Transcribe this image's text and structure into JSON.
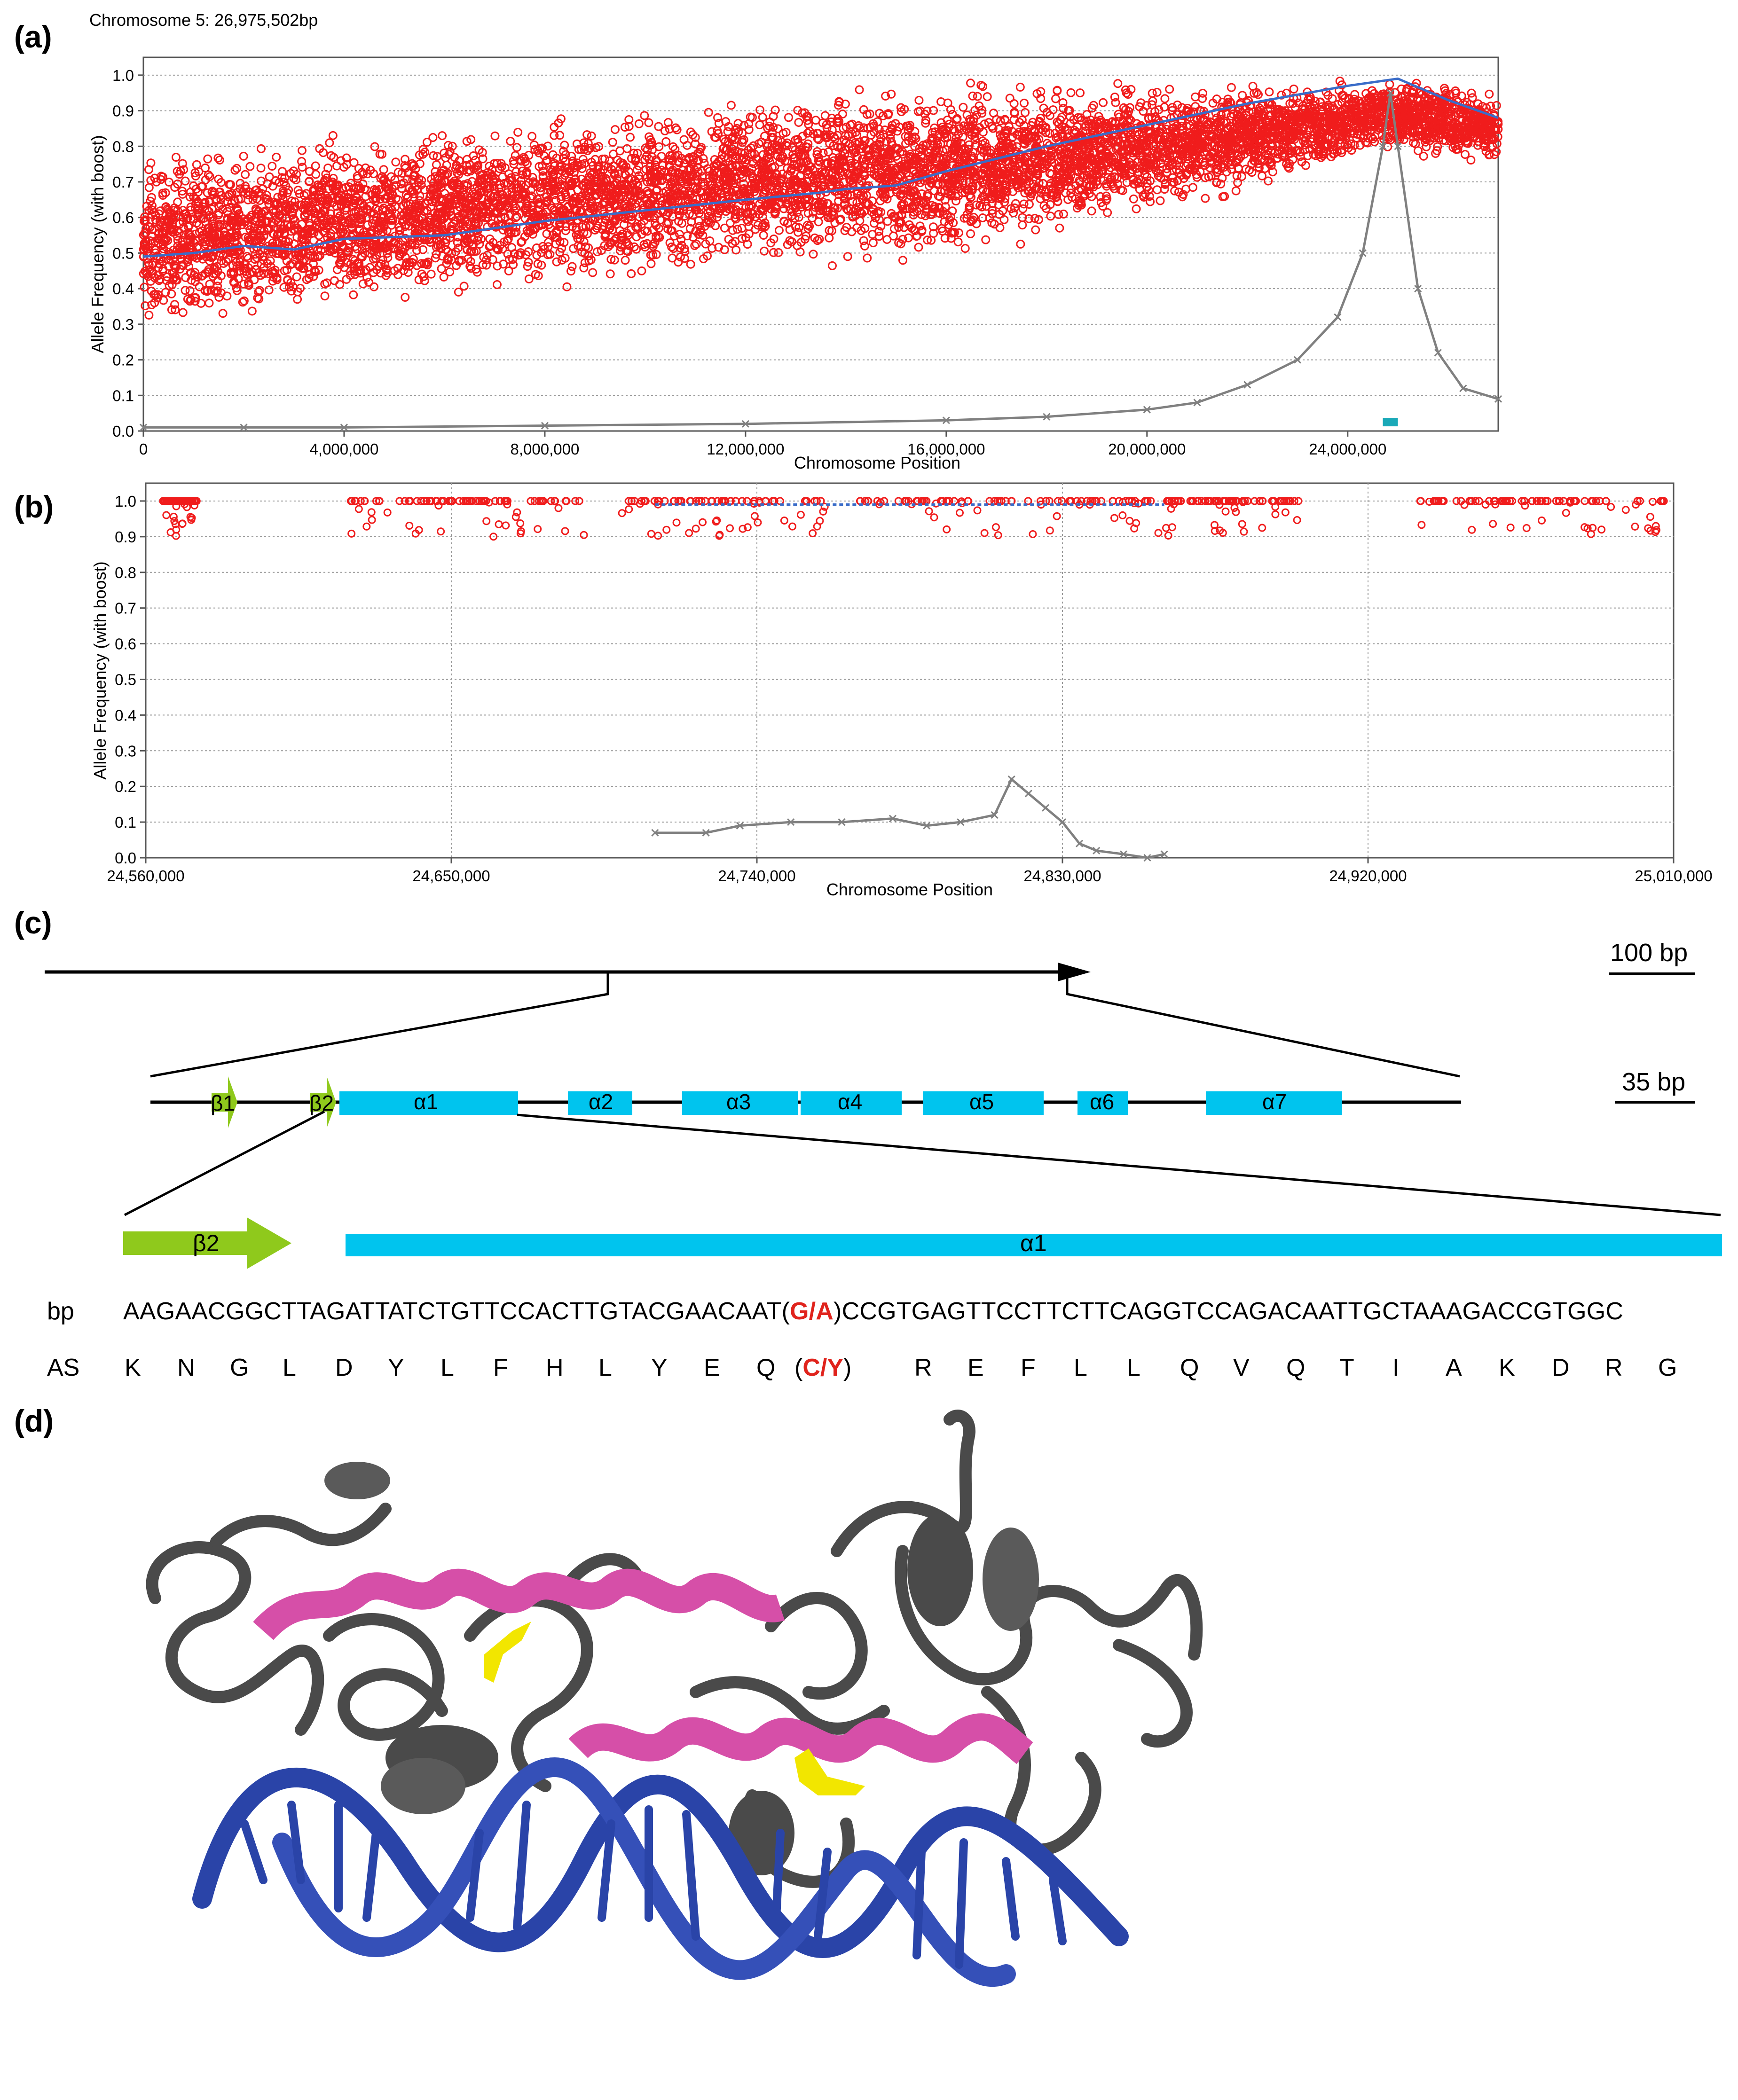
{
  "panels": {
    "a": "(a)",
    "b": "(b)",
    "c": "(c)",
    "d": "(d)"
  },
  "chart_data": [
    {
      "type": "scatter",
      "title": "Chromosome 5: 26,975,502bp",
      "xlabel": "Chromosome Position",
      "ylabel": "Allele Frequency (with boost)",
      "xlim": [
        0,
        27000000
      ],
      "ylim": [
        0,
        1.05
      ],
      "x_ticks": [
        0,
        4000000,
        8000000,
        12000000,
        16000000,
        20000000,
        24000000
      ],
      "x_tick_labels": [
        "0",
        "4,000,000",
        "8,000,000",
        "12,000,000",
        "16,000,000",
        "20,000,000",
        "24,000,000"
      ],
      "y_ticks": [
        0.0,
        0.1,
        0.2,
        0.3,
        0.4,
        0.5,
        0.6,
        0.7,
        0.8,
        0.9,
        1.0
      ],
      "y_tick_labels": [
        "0.0",
        "0.1",
        "0.2",
        "0.3",
        "0.4",
        "0.5",
        "0.6",
        "0.7",
        "0.8",
        "0.9",
        "1.0"
      ],
      "grid": true,
      "series": [
        {
          "color": "#f01c1c",
          "style": "points",
          "band_x": [
            0,
            2000000,
            4000000,
            6000000,
            7500000,
            8000000,
            10000000,
            12000000,
            13500000,
            15000000,
            17000000,
            19000000,
            21000000,
            23000000,
            24800000,
            26000000,
            27000000
          ],
          "band_low": [
            0.25,
            0.3,
            0.32,
            0.35,
            0.35,
            0.38,
            0.4,
            0.45,
            0.45,
            0.45,
            0.5,
            0.55,
            0.62,
            0.7,
            0.78,
            0.75,
            0.75
          ],
          "band_high": [
            0.8,
            0.82,
            0.85,
            0.88,
            0.9,
            0.9,
            0.92,
            0.95,
            0.98,
            1.0,
            1.0,
            1.0,
            1.0,
            1.0,
            1.0,
            1.0,
            0.95
          ]
        },
        {
          "color": "#3a6cc8",
          "style": "line",
          "x": [
            0,
            1000000,
            2000000,
            3000000,
            4000000,
            6000000,
            8000000,
            10000000,
            12000000,
            13500000,
            14000000,
            15000000,
            16000000,
            18000000,
            20000000,
            22000000,
            24000000,
            25000000,
            26000000,
            27000000
          ],
          "y": [
            0.49,
            0.5,
            0.52,
            0.51,
            0.54,
            0.55,
            0.59,
            0.62,
            0.65,
            0.67,
            0.68,
            0.69,
            0.73,
            0.8,
            0.86,
            0.92,
            0.97,
            0.99,
            0.93,
            0.88
          ]
        },
        {
          "color": "#808080",
          "style": "line",
          "x": [
            0,
            2000000,
            4000000,
            8000000,
            12000000,
            16000000,
            18000000,
            20000000,
            21000000,
            22000000,
            23000000,
            23800000,
            24300000,
            24700000,
            24850000,
            25000000,
            25400000,
            25800000,
            26300000,
            27000000
          ],
          "y": [
            0.01,
            0.01,
            0.01,
            0.015,
            0.02,
            0.03,
            0.04,
            0.06,
            0.08,
            0.13,
            0.2,
            0.32,
            0.5,
            0.8,
            0.95,
            0.8,
            0.4,
            0.22,
            0.12,
            0.09
          ]
        },
        {
          "color": "#1aa9b8",
          "style": "marker",
          "x": [
            24700000,
            25000000
          ],
          "y": [
            0.025,
            0.025
          ]
        }
      ]
    },
    {
      "type": "scatter",
      "title": "",
      "xlabel": "Chromosome Position",
      "ylabel": "Allele Frequency (with boost)",
      "xlim": [
        24560000,
        25010000
      ],
      "ylim": [
        0,
        1.05
      ],
      "x_ticks": [
        24560000,
        24650000,
        24740000,
        24830000,
        24920000,
        25010000
      ],
      "x_tick_labels": [
        "24,560,000",
        "24,650,000",
        "24,740,000",
        "24,830,000",
        "24,920,000",
        "25,010,000"
      ],
      "y_ticks": [
        0.0,
        0.1,
        0.2,
        0.3,
        0.4,
        0.5,
        0.6,
        0.7,
        0.8,
        0.9,
        1.0
      ],
      "y_tick_labels": [
        "0.0",
        "0.1",
        "0.2",
        "0.3",
        "0.4",
        "0.5",
        "0.6",
        "0.7",
        "0.8",
        "0.9",
        "1.0"
      ],
      "grid": true,
      "series": [
        {
          "color": "#f01c1c",
          "style": "points",
          "band_x": [
            24560000,
            25010000
          ],
          "band_low": [
            0.9,
            0.9
          ],
          "band_high": [
            1.0,
            1.0
          ]
        },
        {
          "color": "#3a6cc8",
          "style": "line",
          "x": [
            24710000,
            24860000
          ],
          "y": [
            0.99,
            0.99
          ]
        },
        {
          "color": "#808080",
          "style": "line",
          "x": [
            24710000,
            24725000,
            24735000,
            24750000,
            24765000,
            24780000,
            24790000,
            24800000,
            24810000,
            24815000,
            24820000,
            24825000,
            24830000,
            24835000,
            24840000,
            24848000,
            24855000,
            24860000
          ],
          "y": [
            0.07,
            0.07,
            0.09,
            0.1,
            0.1,
            0.11,
            0.09,
            0.1,
            0.12,
            0.22,
            0.18,
            0.14,
            0.1,
            0.04,
            0.02,
            0.01,
            0.0,
            0.01
          ]
        }
      ]
    }
  ],
  "gene_model": {
    "scale_top": "100 bp",
    "scale_mid": "35 bp",
    "elements": [
      {
        "label": "β1",
        "kind": "strand"
      },
      {
        "label": "β2",
        "kind": "strand"
      },
      {
        "label": "α1",
        "kind": "helix"
      },
      {
        "label": "α2",
        "kind": "helix"
      },
      {
        "label": "α3",
        "kind": "helix"
      },
      {
        "label": "α4",
        "kind": "helix"
      },
      {
        "label": "α5",
        "kind": "helix"
      },
      {
        "label": "α6",
        "kind": "helix"
      },
      {
        "label": "α7",
        "kind": "helix"
      }
    ],
    "zoom_labels": {
      "strand": "β2",
      "helix": "α1"
    },
    "colors": {
      "strand": "#8fc91c",
      "helix": "#00c4ee"
    }
  },
  "sequence": {
    "bp_label": "bp",
    "bp_before": "AAGAACGGCTTAGATTATCTGTTCCACTTGTACGAACAAT(",
    "bp_ref": "G",
    "bp_slash": "/",
    "bp_alt": "A",
    "bp_after": ")CCGTGAGTTCCTTCTTCAGGTCCAGACAATTGCTAAAGACCGTGGC",
    "as_label": "AS",
    "as_before": [
      "K",
      "N",
      "G",
      "L",
      "D",
      "Y",
      "L",
      "F",
      "H",
      "L",
      "Y",
      "E",
      "Q"
    ],
    "as_mut_open": "(",
    "as_mut_ref": "C",
    "as_mut_slash": "/",
    "as_mut_alt": "Y",
    "as_mut_close": ")",
    "as_after": [
      "R",
      "E",
      "F",
      "L",
      "L",
      "Q",
      "V",
      "Q",
      "T",
      "I",
      "A",
      "K",
      "D",
      "R",
      "G"
    ]
  },
  "structure": {
    "colors": {
      "protein": "#4a4a4a",
      "helix_highlight": "#d64fa8",
      "mutation": "#f2e600",
      "dna": "#2a44a8"
    }
  }
}
